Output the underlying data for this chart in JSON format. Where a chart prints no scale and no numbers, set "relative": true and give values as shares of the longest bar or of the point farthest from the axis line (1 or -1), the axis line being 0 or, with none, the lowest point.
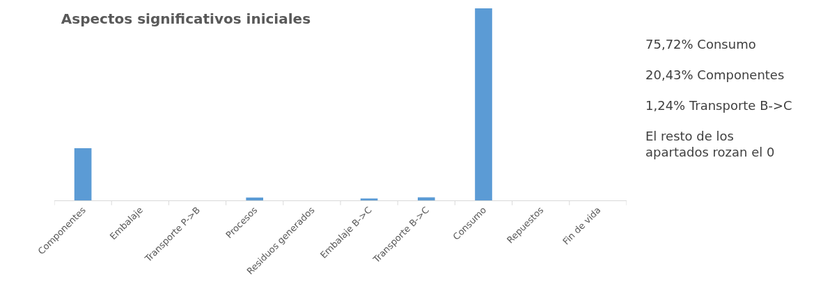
{
  "chart_data": {
    "type": "bar",
    "title": "Aspectos significativos iniciales",
    "categories": [
      "Componentes",
      "Embalaje",
      "Transporte P->B",
      "Procesos",
      "Residuos generados",
      "Embalaje B->C",
      "Transporte B->C",
      "Consumo",
      "Repuestos",
      "Fin de vida"
    ],
    "values": [
      0.272,
      0,
      0,
      0.015,
      0,
      0.01,
      0.016,
      1,
      0,
      0
    ],
    "color": "#5b9bd5",
    "relative": true,
    "annotations": [
      "75,72% Consumo",
      "20,43% Componentes",
      "1,24% Transporte B->C",
      "El resto de los\napartados rozan el 0"
    ]
  }
}
